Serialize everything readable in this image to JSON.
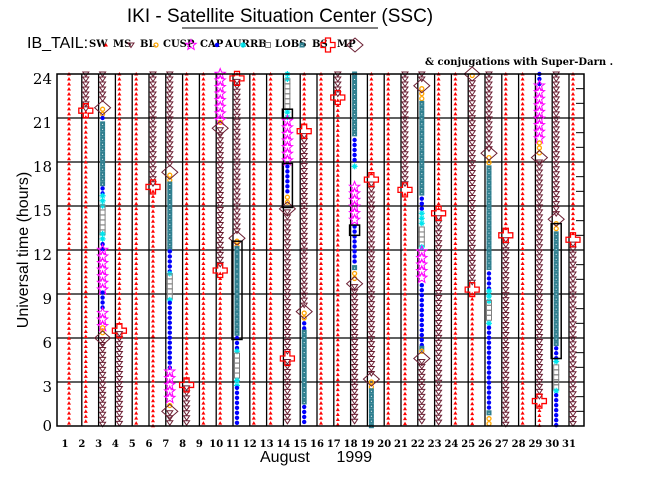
{
  "title": "IKI - Satellite Situation Center (SSC)",
  "legend": {
    "prefix": "IB_TAIL:",
    "items": [
      {
        "key": "SW",
        "label": "SW"
      },
      {
        "key": "MS",
        "label": "MS"
      },
      {
        "key": "BL",
        "label": "BL"
      },
      {
        "key": "CUSP",
        "label": "CUSP"
      },
      {
        "key": "CAP",
        "label": "CAP"
      },
      {
        "key": "AUR",
        "label": "AUR"
      },
      {
        "key": "RB",
        "label": "RB"
      },
      {
        "key": "LOBS",
        "label": "LOBS"
      },
      {
        "key": "BS",
        "label": "BS"
      },
      {
        "key": "MP",
        "label": "MP"
      }
    ],
    "note": "& conjugations with Super-Darn ."
  },
  "colors": {
    "SW": "#ff0000",
    "MS": "#6b1f33",
    "BL": "#ffa500",
    "CUSP": "#ff00ff",
    "CAP": "#0000ff",
    "AUR": "#00e5ee",
    "RB": "#808080",
    "LOBS": "#2f7f8f",
    "BS": "#ff0000",
    "MP": "#6b1f33"
  },
  "chart_data": {
    "type": "scatter",
    "title": "IKI - Satellite Situation Center (SSC)",
    "xlabel": "August      1999",
    "ylabel": "Universal time (hours)",
    "xlim": [
      1,
      31
    ],
    "ylim": [
      0,
      24
    ],
    "grid": true,
    "yticks": [
      0,
      3,
      6,
      9,
      12,
      15,
      18,
      21,
      24
    ],
    "xticks": [
      1,
      2,
      3,
      4,
      5,
      6,
      7,
      8,
      9,
      10,
      11,
      12,
      13,
      14,
      15,
      16,
      17,
      18,
      19,
      20,
      21,
      22,
      23,
      24,
      25,
      26,
      27,
      28,
      29,
      30,
      31
    ],
    "days": [
      {
        "day": 1,
        "segments": [
          [
            "SW",
            0,
            24
          ]
        ]
      },
      {
        "day": 2,
        "segments": [
          [
            "MS",
            21.6,
            24
          ],
          [
            "SW",
            0,
            21.4
          ]
        ],
        "points": [
          [
            "BS",
            21.5
          ]
        ]
      },
      {
        "day": 3,
        "segments": [
          [
            "MS",
            22,
            24
          ],
          [
            "BL",
            21,
            21.6
          ],
          [
            "CAP",
            20.7,
            21
          ],
          [
            "LOBS",
            16.3,
            20.6
          ],
          [
            "CAP",
            15.8,
            16.2
          ],
          [
            "AUR",
            15,
            15.7
          ],
          [
            "RB",
            13.2,
            14.9
          ],
          [
            "AUR",
            12.5,
            13.1
          ],
          [
            "CAP",
            12,
            12.4
          ],
          [
            "CUSP",
            9.2,
            12
          ],
          [
            "CAP",
            7.8,
            9.1
          ],
          [
            "CUSP",
            6.8,
            7.7
          ],
          [
            "BL",
            6.2,
            6.7
          ],
          [
            "MS",
            0,
            5.9
          ]
        ],
        "points": [
          [
            "MP",
            6.0
          ],
          [
            "MP",
            21.7
          ]
        ]
      },
      {
        "day": 4,
        "segments": [
          [
            "SW",
            6.7,
            24
          ],
          [
            "MS",
            0,
            6.3
          ]
        ],
        "points": [
          [
            "BS",
            6.5
          ]
        ]
      },
      {
        "day": 5,
        "segments": [
          [
            "SW",
            0,
            24
          ]
        ]
      },
      {
        "day": 6,
        "segments": [
          [
            "MS",
            16.5,
            24
          ],
          [
            "SW",
            0,
            16.0
          ]
        ],
        "points": [
          [
            "BS",
            16.3
          ]
        ]
      },
      {
        "day": 7,
        "segments": [
          [
            "MS",
            17.6,
            24
          ],
          [
            "BL",
            16.6,
            17.1
          ],
          [
            "LOBS",
            12,
            16.5
          ],
          [
            "CAP",
            10.5,
            11.9
          ],
          [
            "AUR",
            10.3,
            10.4
          ],
          [
            "RB",
            8.7,
            10.2
          ],
          [
            "AUR",
            8.5,
            8.6
          ],
          [
            "CAP",
            3.8,
            8.4
          ],
          [
            "CUSP",
            1.5,
            3.7
          ],
          [
            "BL",
            1.2,
            1.4
          ],
          [
            "MS",
            0,
            0.9
          ]
        ],
        "points": [
          [
            "MP",
            17.3
          ],
          [
            "MP",
            1.0
          ]
        ]
      },
      {
        "day": 8,
        "segments": [
          [
            "SW",
            3.1,
            24
          ],
          [
            "MS",
            0,
            2.6
          ]
        ],
        "points": [
          [
            "BS",
            2.8
          ]
        ]
      },
      {
        "day": 9,
        "segments": [
          [
            "SW",
            0,
            24
          ]
        ]
      },
      {
        "day": 10,
        "segments": [
          [
            "CUSP",
            20.8,
            24
          ],
          [
            "BL",
            20.5,
            20.7
          ],
          [
            "MS",
            11,
            20.2
          ],
          [
            "SW",
            0,
            10.4
          ]
        ],
        "points": [
          [
            "MP",
            20.3
          ],
          [
            "BS",
            10.6
          ]
        ]
      },
      {
        "day": 11,
        "segments": [
          [
            "SW",
            23.8,
            24
          ],
          [
            "MS",
            13,
            23.5
          ],
          [
            "BL",
            12.2,
            12.6
          ],
          [
            "LOBS",
            6.1,
            12.1
          ],
          [
            "CAP",
            5.2,
            6
          ],
          [
            "AUR",
            5,
            5.1
          ],
          [
            "RB",
            3.2,
            4.8
          ],
          [
            "AUR",
            2.7,
            3.1
          ],
          [
            "CAP",
            0,
            2.6
          ]
        ],
        "points": [
          [
            "BS",
            23.7
          ],
          [
            "MP",
            12.8
          ]
        ],
        "boxes": [
          [
            5.9,
            12.6
          ]
        ]
      },
      {
        "day": 12,
        "segments": [
          [
            "SW",
            0,
            24
          ]
        ]
      },
      {
        "day": 13,
        "segments": [
          [
            "SW",
            0,
            24
          ]
        ]
      },
      {
        "day": 14,
        "segments": [
          [
            "AUR",
            23.6,
            24
          ],
          [
            "RB",
            21.5,
            23.5
          ],
          [
            "AUR",
            21,
            21.4
          ],
          [
            "CUSP",
            17.8,
            20.8
          ],
          [
            "CAP",
            15.7,
            17.7
          ],
          [
            "BL",
            15,
            15.6
          ],
          [
            "MS",
            4.8,
            14.6
          ],
          [
            "MS",
            0,
            4.4
          ]
        ],
        "points": [
          [
            "MP",
            14.8
          ],
          [
            "BS",
            4.6
          ]
        ],
        "boxes": [
          [
            14.9,
            17.9
          ],
          [
            21,
            21.6
          ]
        ]
      },
      {
        "day": 15,
        "segments": [
          [
            "SW",
            20.4,
            24
          ],
          [
            "MS",
            8.2,
            19.8
          ],
          [
            "BL",
            7.3,
            7.7
          ],
          [
            "CAP",
            6.5,
            7.0
          ],
          [
            "LOBS",
            1.4,
            6.4
          ],
          [
            "CAP",
            0,
            1.3
          ]
        ],
        "points": [
          [
            "BS",
            20.1
          ],
          [
            "MP",
            7.8
          ]
        ]
      },
      {
        "day": 16,
        "segments": [
          [
            "SW",
            0,
            24
          ]
        ]
      },
      {
        "day": 17,
        "segments": [
          [
            "MS",
            22.6,
            24
          ],
          [
            "SW",
            0,
            22.2
          ]
        ],
        "points": [
          [
            "BS",
            22.4
          ]
        ]
      },
      {
        "day": 18,
        "segments": [
          [
            "LOBS",
            19.6,
            24
          ],
          [
            "CAP",
            18,
            19.5
          ],
          [
            "AUR",
            17.4,
            17.7
          ],
          [
            "CUSP",
            13.7,
            16.3
          ],
          [
            "CAP",
            10.9,
            13.6
          ],
          [
            "LOBS",
            10.5,
            10.8
          ],
          [
            "BL",
            9.9,
            10.4
          ],
          [
            "MS",
            0,
            9.5
          ]
        ],
        "points": [
          [
            "MP",
            9.7
          ]
        ],
        "boxes": [
          [
            13,
            13.7
          ]
        ]
      },
      {
        "day": 19,
        "segments": [
          [
            "SW",
            17.1,
            24
          ],
          [
            "MS",
            3.4,
            16.5
          ],
          [
            "BL",
            2.5,
            3.0
          ],
          [
            "LOBS",
            0,
            2.4
          ]
        ],
        "points": [
          [
            "BS",
            16.8
          ],
          [
            "MP",
            3.2
          ]
        ]
      },
      {
        "day": 20,
        "segments": [
          [
            "SW",
            0,
            24
          ]
        ]
      },
      {
        "day": 21,
        "segments": [
          [
            "MS",
            16.4,
            24
          ],
          [
            "SW",
            0,
            15.8
          ]
        ],
        "points": [
          [
            "BS",
            16.1
          ]
        ]
      },
      {
        "day": 22,
        "segments": [
          [
            "MS",
            23.4,
            24
          ],
          [
            "BL",
            22.2,
            23
          ],
          [
            "LOBS",
            15.6,
            22
          ],
          [
            "CAP",
            14.6,
            15.5
          ],
          [
            "AUR",
            13.5,
            14.5
          ],
          [
            "RB",
            12.3,
            13.4
          ],
          [
            "AUR",
            12,
            12.2
          ],
          [
            "CUSP",
            9.7,
            11.9
          ],
          [
            "CAP",
            5.4,
            9.6
          ],
          [
            "LOBS",
            5.2,
            5.3
          ],
          [
            "BL",
            4.8,
            5.1
          ],
          [
            "MS",
            0,
            4.4
          ]
        ],
        "points": [
          [
            "MP",
            23.2
          ],
          [
            "MP",
            4.6
          ]
        ]
      },
      {
        "day": 23,
        "segments": [
          [
            "SW",
            14.8,
            24
          ],
          [
            "MS",
            0,
            14.2
          ]
        ],
        "points": [
          [
            "BS",
            14.5
          ]
        ]
      },
      {
        "day": 24,
        "segments": [
          [
            "SW",
            0,
            24
          ]
        ]
      },
      {
        "day": 25,
        "segments": [
          [
            "BL",
            23.6,
            23.9
          ],
          [
            "MS",
            9.6,
            23.4
          ],
          [
            "SW",
            0,
            9.0
          ]
        ],
        "points": [
          [
            "MP",
            24
          ],
          [
            "BS",
            9.3
          ]
        ]
      },
      {
        "day": 26,
        "segments": [
          [
            "MS",
            18.9,
            24
          ],
          [
            "BL",
            17.8,
            18.3
          ],
          [
            "LOBS",
            10.5,
            17.6
          ],
          [
            "CAP",
            9.3,
            10.4
          ],
          [
            "AUR",
            8.5,
            9.2
          ],
          [
            "RB",
            7.1,
            8.4
          ],
          [
            "AUR",
            6.8,
            7.0
          ],
          [
            "CAP",
            1,
            6.7
          ],
          [
            "LOBS",
            0.7,
            0.9
          ],
          [
            "BL",
            0,
            0.5
          ]
        ],
        "points": [
          [
            "MP",
            18.6
          ]
        ]
      },
      {
        "day": 27,
        "segments": [
          [
            "SW",
            13.4,
            24
          ],
          [
            "MS",
            0,
            12.7
          ]
        ],
        "points": [
          [
            "BS",
            13.0
          ]
        ]
      },
      {
        "day": 28,
        "segments": [
          [
            "SW",
            0,
            24
          ]
        ]
      },
      {
        "day": 29,
        "segments": [
          [
            "CAP",
            23.3,
            24
          ],
          [
            "CUSP",
            19.4,
            23.2
          ],
          [
            "BL",
            18.6,
            19.3
          ],
          [
            "MS",
            2.0,
            18.0
          ],
          [
            "SW",
            0,
            1.4
          ]
        ],
        "points": [
          [
            "MP",
            18.3
          ],
          [
            "BS",
            1.7
          ]
        ]
      },
      {
        "day": 30,
        "segments": [
          [
            "MS",
            14.4,
            24
          ],
          [
            "BL",
            13.2,
            13.8
          ],
          [
            "LOBS",
            5.4,
            13.1
          ],
          [
            "CAP",
            4.5,
            5.3
          ],
          [
            "AUR",
            4.1,
            4.4
          ],
          [
            "RB",
            2.5,
            4.0
          ],
          [
            "AUR",
            2.2,
            2.4
          ],
          [
            "CAP",
            0,
            2.1
          ]
        ],
        "points": [
          [
            "MP",
            14.1
          ]
        ],
        "boxes": [
          [
            4.6,
            13.8
          ]
        ]
      },
      {
        "day": 31,
        "segments": [
          [
            "SW",
            13.1,
            24
          ],
          [
            "MS",
            0,
            12.4
          ]
        ],
        "points": [
          [
            "BS",
            12.7
          ]
        ]
      }
    ]
  }
}
